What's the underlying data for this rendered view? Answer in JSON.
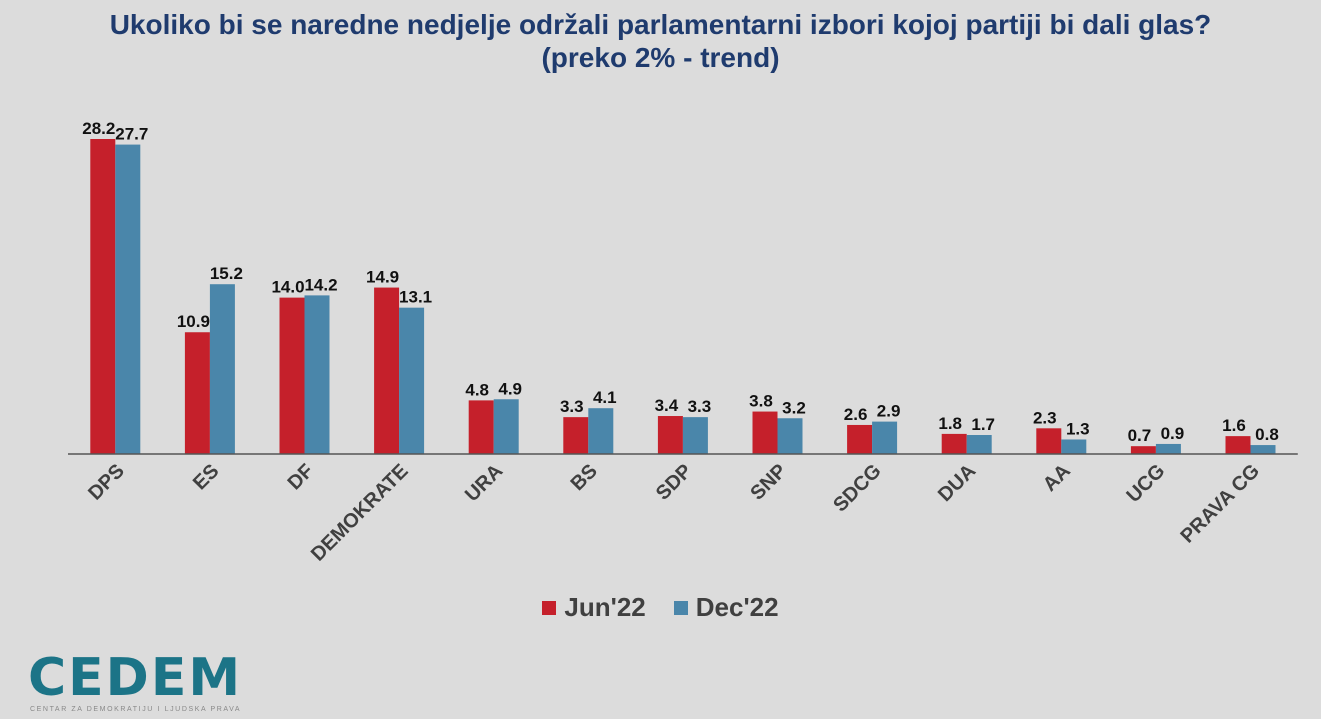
{
  "page_title": "Ukoliko bi se naredne nedjelje održali parlamentarni izbori kojoj partiji bi dali glas?",
  "page_subtitle": "(preko  2% - trend)",
  "colors": {
    "jun": "#c5202b",
    "dec": "#4a86aa",
    "title": "#1f3b6e",
    "axis": "#404040",
    "logo": "#1c7487"
  },
  "logo": {
    "text": "CEDEM",
    "subtitle": "CENTAR ZA DEMOKRATIJU I LJUDSKA PRAVA"
  },
  "chart_data": {
    "type": "bar",
    "title": "Ukoliko bi se naredne nedjelje održali parlamentarni izbori kojoj partiji bi dali glas?",
    "subtitle": "(preko  2% - trend)",
    "categories": [
      "DPS",
      "ES",
      "DF",
      "DEMOKRATE",
      "URA",
      "BS",
      "SDP",
      "SNP",
      "SDCG",
      "DUA",
      "AA",
      "UCG",
      "PRAVA CG"
    ],
    "series": [
      {
        "name": "Jun'22",
        "values": [
          28.2,
          10.9,
          14.0,
          14.9,
          4.8,
          3.3,
          3.4,
          3.8,
          2.6,
          1.8,
          2.3,
          0.7,
          1.6
        ]
      },
      {
        "name": "Dec'22",
        "values": [
          27.7,
          15.2,
          14.2,
          13.1,
          4.9,
          4.1,
          3.3,
          3.2,
          2.9,
          1.7,
          1.3,
          0.9,
          0.8
        ]
      }
    ],
    "labels": [
      [
        "28.2",
        "10.9",
        "14.0",
        "14.9",
        "4.8",
        "3.3",
        "3.4",
        "3.8",
        "2.6",
        "1.8",
        "2.3",
        "0.7",
        "1.6"
      ],
      [
        "27.7",
        "15.2",
        "14.2",
        "13.1",
        "4.9",
        "4.1",
        "3.3",
        "3.2",
        "2.9",
        "1.7",
        "1.3",
        "0.9",
        "0.8"
      ]
    ],
    "ylim": [
      0,
      30
    ],
    "grid": false,
    "legend_position": "bottom"
  }
}
